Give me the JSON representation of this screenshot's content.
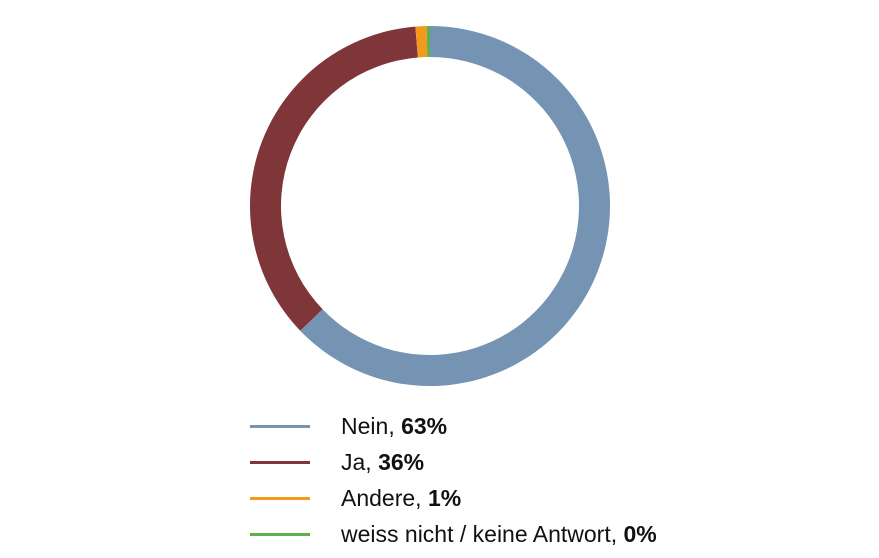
{
  "chart_data": {
    "type": "pie",
    "donut": true,
    "start_angle_deg": 0,
    "direction": "clockwise",
    "slices": [
      {
        "label": "Nein",
        "value": 63,
        "value_label": "63%",
        "color": "#7594b3"
      },
      {
        "label": "Ja",
        "value": 36,
        "value_label": "36%",
        "color": "#7e3639"
      },
      {
        "label": "Andere",
        "value": 1,
        "value_label": "1%",
        "color": "#f39a1e"
      },
      {
        "label": "weiss nicht / keine Antwort",
        "value": 0.3,
        "value_label": "0%",
        "color": "#5fb24a"
      }
    ],
    "legend_position": "bottom"
  }
}
